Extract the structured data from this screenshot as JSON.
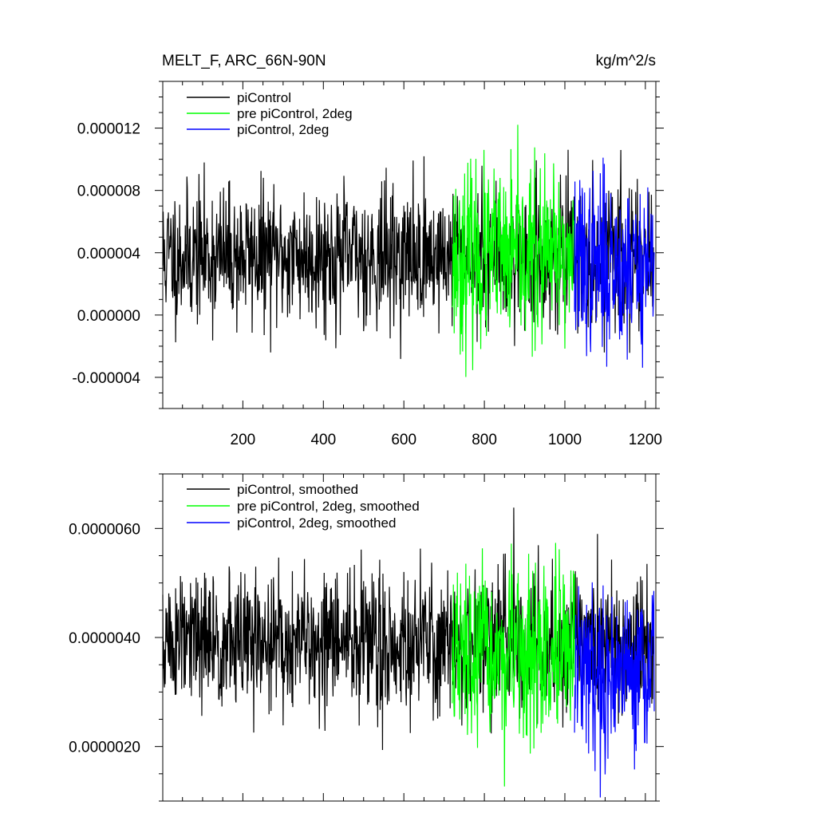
{
  "chart_data": [
    {
      "type": "line",
      "title_left": "MELT_F, ARC_66N-90N",
      "title_right": "kg/m^2/s",
      "xlim": [
        1,
        1226
      ],
      "ylim": [
        -6e-06,
        1.5e-05
      ],
      "xticks": [
        200,
        400,
        600,
        800,
        1000,
        1200
      ],
      "xticklabels": [
        "200",
        "400",
        "600",
        "800",
        "1000",
        "1200"
      ],
      "yticks": [
        -4e-06,
        0.0,
        4e-06,
        8e-06,
        1.2e-05
      ],
      "yticklabels": [
        "-0.000004",
        "0.000000",
        "0.000004",
        "0.000008",
        "0.000012"
      ],
      "legend_position": "top-left",
      "series": [
        {
          "name": "piControl",
          "color": "#000000",
          "x_range": [
            1,
            1220
          ],
          "mean": 3.8e-06,
          "noise_sd": 2.2e-06,
          "seed": 11
        },
        {
          "name": "pre piControl, 2deg",
          "color": "#00ff00",
          "x_range": [
            720,
            1024
          ],
          "mean": 3.6e-06,
          "noise_sd": 2.8e-06,
          "seed": 23
        },
        {
          "name": "piControl, 2deg",
          "color": "#0000ff",
          "x_range": [
            1024,
            1222
          ],
          "mean": 3.3e-06,
          "noise_sd": 2.8e-06,
          "seed": 37
        }
      ]
    },
    {
      "type": "line",
      "xlim": [
        1,
        1226
      ],
      "ylim": [
        1e-06,
        7e-06
      ],
      "xticks": [
        200,
        400,
        600,
        800,
        1000,
        1200
      ],
      "xticklabels": [],
      "yticks": [
        2e-06,
        4e-06,
        6e-06
      ],
      "yticklabels": [
        "0.0000020",
        "0.0000040",
        "0.0000060"
      ],
      "legend_position": "top-left",
      "series": [
        {
          "name": "piControl, smoothed",
          "color": "#000000",
          "x_range": [
            1,
            1220
          ],
          "mean": 3.9e-06,
          "noise_sd": 6.5e-07,
          "seed": 51
        },
        {
          "name": "pre piControl, 2deg, smoothed",
          "color": "#00ff00",
          "x_range": [
            720,
            1024
          ],
          "mean": 3.6e-06,
          "noise_sd": 8e-07,
          "seed": 67
        },
        {
          "name": "piControl, 2deg, smoothed",
          "color": "#0000ff",
          "x_range": [
            1024,
            1222
          ],
          "mean": 3.4e-06,
          "noise_sd": 7.5e-07,
          "seed": 79
        }
      ]
    }
  ]
}
